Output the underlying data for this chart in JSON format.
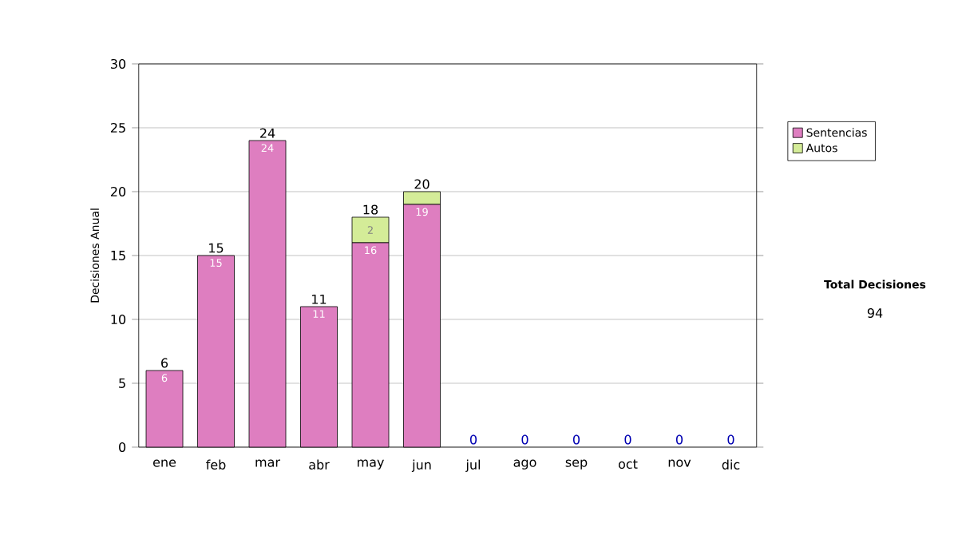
{
  "chart_data": {
    "type": "bar",
    "stacked": true,
    "ylabel": "Decisiones Anual",
    "categories": [
      "ene",
      "feb",
      "mar",
      "abr",
      "may",
      "jun",
      "jul",
      "ago",
      "sep",
      "oct",
      "nov",
      "dic"
    ],
    "series": [
      {
        "name": "Sentencias",
        "color": "#de7ec0",
        "values": [
          6,
          15,
          24,
          11,
          16,
          19,
          0,
          0,
          0,
          0,
          0,
          0
        ],
        "value_labels": [
          "6",
          "15",
          "24",
          "11",
          "16",
          "19",
          null,
          null,
          null,
          null,
          null,
          null
        ]
      },
      {
        "name": "Autos",
        "color": "#d4ec98",
        "values": [
          0,
          0,
          0,
          0,
          2,
          1,
          0,
          0,
          0,
          0,
          0,
          0
        ],
        "value_labels": [
          null,
          null,
          null,
          null,
          "2",
          null,
          null,
          null,
          null,
          null,
          null,
          null
        ]
      }
    ],
    "totals": [
      "6",
      "15",
      "24",
      "11",
      "18",
      "20",
      "0",
      "0",
      "0",
      "0",
      "0",
      "0"
    ],
    "ylim": [
      0,
      30
    ],
    "yticks": [
      0,
      5,
      10,
      15,
      20,
      25,
      30
    ],
    "grid": "y",
    "legend": "right",
    "annotations": [
      "Total Decisiones",
      "94"
    ]
  }
}
